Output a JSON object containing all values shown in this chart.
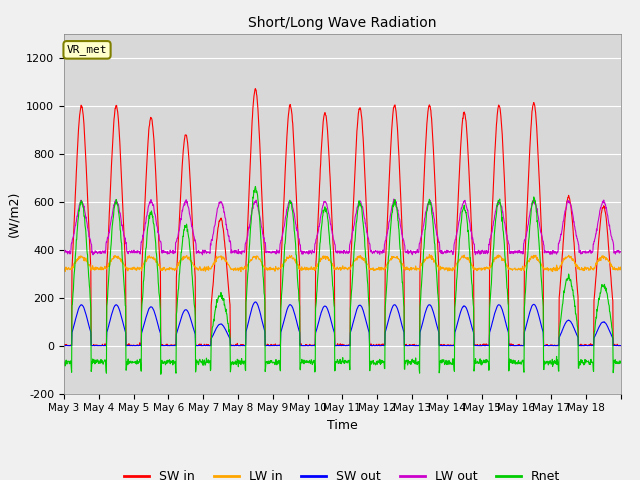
{
  "title": "Short/Long Wave Radiation",
  "xlabel": "Time",
  "ylabel": "(W/m2)",
  "ylim": [
    -200,
    1300
  ],
  "yticks": [
    -200,
    0,
    200,
    400,
    600,
    800,
    1000,
    1200
  ],
  "label_box": "VR_met",
  "colors": {
    "SW_in": "#ff0000",
    "LW_in": "#ffa500",
    "SW_out": "#0000ff",
    "LW_out": "#cc00cc",
    "Rnet": "#00cc00"
  },
  "legend_labels": [
    "SW in",
    "LW in",
    "SW out",
    "LW out",
    "Rnet"
  ],
  "n_days": 16,
  "start_day": 3,
  "day_peaks_sw": [
    1000,
    1000,
    950,
    880,
    530,
    1070,
    1000,
    970,
    990,
    1000,
    1000,
    970,
    1000,
    1010,
    620,
    580
  ],
  "lw_in_base": 320,
  "lw_in_day_bump": 50,
  "lw_out_night": 390,
  "lw_out_day_peak": 600,
  "albedo": 0.17,
  "pts_per_day": 96,
  "figsize": [
    6.4,
    4.8
  ],
  "dpi": 100,
  "fig_facecolor": "#f0f0f0",
  "ax_facecolor": "#d8d8d8"
}
